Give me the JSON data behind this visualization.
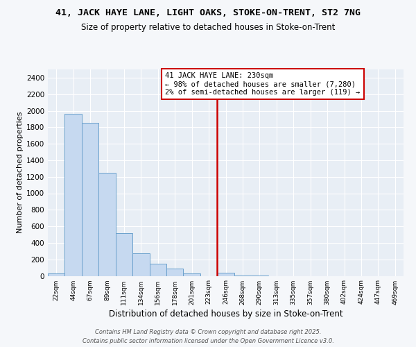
{
  "title1": "41, JACK HAYE LANE, LIGHT OAKS, STOKE-ON-TRENT, ST2 7NG",
  "title2": "Size of property relative to detached houses in Stoke-on-Trent",
  "xlabel": "Distribution of detached houses by size in Stoke-on-Trent",
  "ylabel": "Number of detached properties",
  "categories": [
    "22sqm",
    "44sqm",
    "67sqm",
    "89sqm",
    "111sqm",
    "134sqm",
    "156sqm",
    "178sqm",
    "201sqm",
    "223sqm",
    "246sqm",
    "268sqm",
    "290sqm",
    "313sqm",
    "335sqm",
    "357sqm",
    "380sqm",
    "402sqm",
    "424sqm",
    "447sqm",
    "469sqm"
  ],
  "values": [
    30,
    1960,
    1855,
    1250,
    520,
    275,
    150,
    90,
    30,
    0,
    35,
    5,
    2,
    0,
    0,
    0,
    0,
    0,
    0,
    0,
    0
  ],
  "bar_color": "#c6d9f0",
  "bar_edge_color": "#6aa0cc",
  "red_line_color": "#cc0000",
  "red_line_index": 9,
  "legend_line1": "41 JACK HAYE LANE: 230sqm",
  "legend_line2": "← 98% of detached houses are smaller (7,280)",
  "legend_line3": "2% of semi-detached houses are larger (119) →",
  "ylim": [
    0,
    2500
  ],
  "yticks": [
    0,
    200,
    400,
    600,
    800,
    1000,
    1200,
    1400,
    1600,
    1800,
    2000,
    2200,
    2400
  ],
  "bg_color": "#f5f7fa",
  "plot_bg_color": "#e8eef5",
  "grid_color": "#ffffff",
  "footer1": "Contains HM Land Registry data © Crown copyright and database right 2025.",
  "footer2": "Contains public sector information licensed under the Open Government Licence v3.0."
}
